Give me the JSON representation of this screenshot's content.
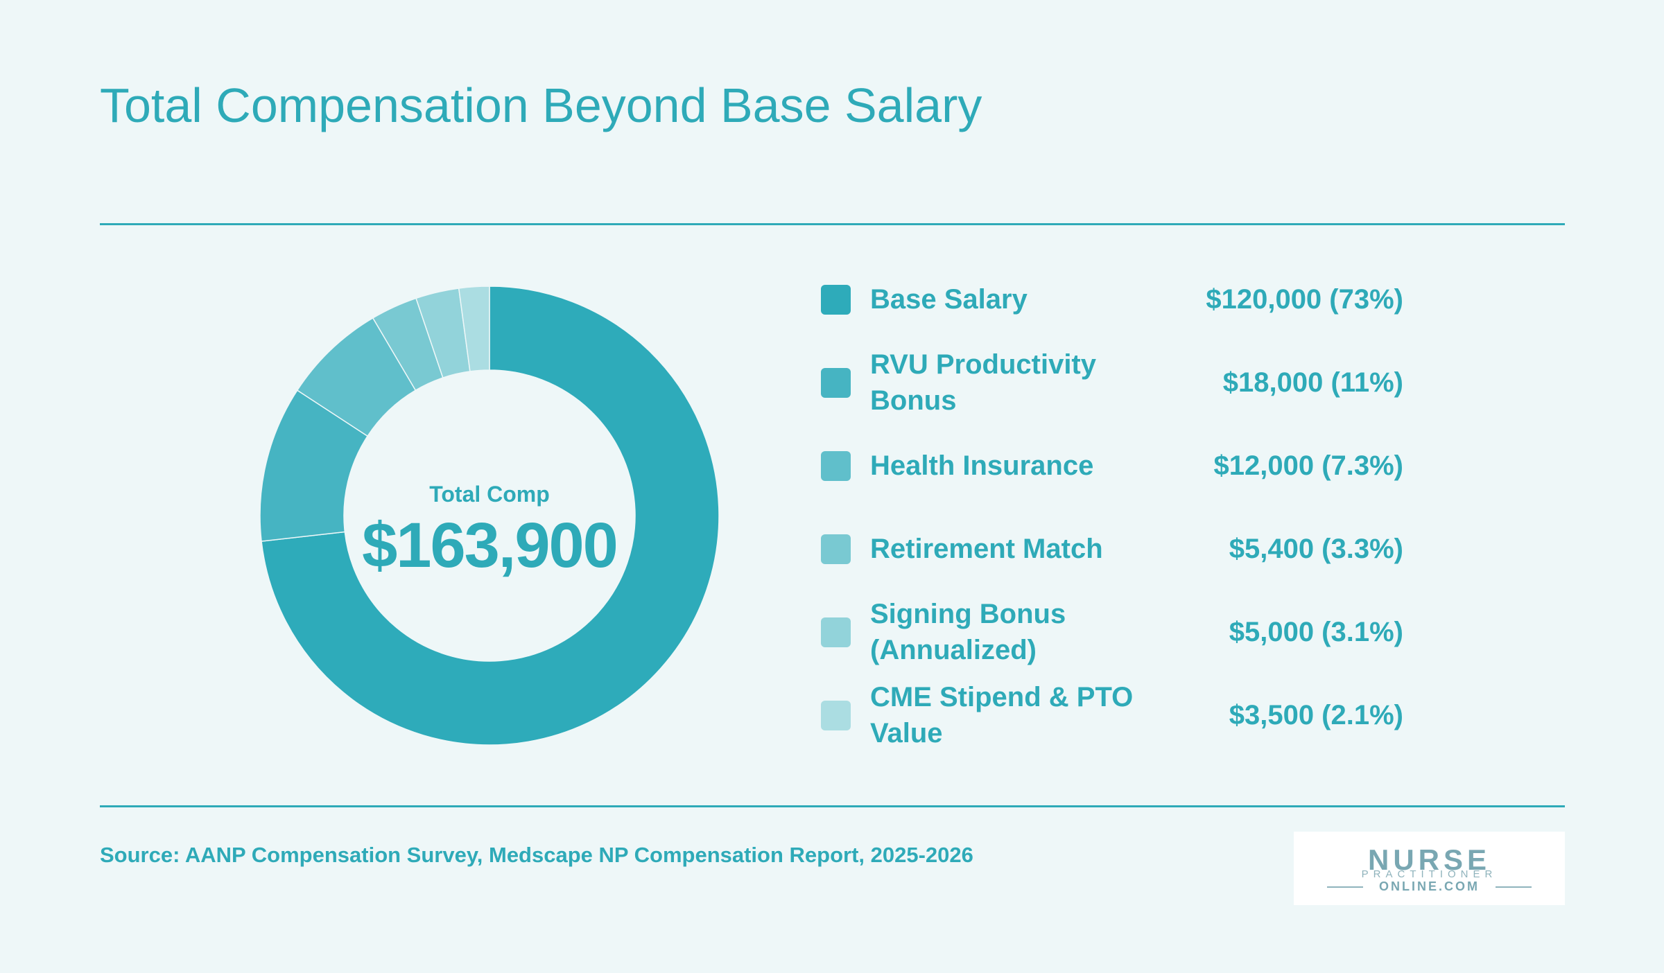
{
  "title": "Total Compensation Beyond Base Salary",
  "chart_data": {
    "type": "pie",
    "variant": "donut",
    "center_label": "Total Comp",
    "center_value": "$163,900",
    "total": 163900,
    "slices": [
      {
        "label": "Base Salary",
        "value": 120000,
        "display": "$120,000 (73%)",
        "color": "#2eabba"
      },
      {
        "label": "RVU Productivity Bonus",
        "value": 18000,
        "display": "$18,000 (11%)",
        "color": "#46b4c2"
      },
      {
        "label": "Health Insurance",
        "value": 12000,
        "display": "$12,000 (7.3%)",
        "color": "#60bfcb"
      },
      {
        "label": "Retirement Match",
        "value": 5400,
        "display": "$5,400 (3.3%)",
        "color": "#79c9d2"
      },
      {
        "label": "Signing Bonus (Annualized)",
        "value": 5000,
        "display": "$5,000 (3.1%)",
        "color": "#92d3da"
      },
      {
        "label": "CME Stipend & PTO Value",
        "value": 3500,
        "display": "$3,500 (2.1%)",
        "color": "#abdde2"
      }
    ],
    "legend_position": "right"
  },
  "source": "Source: AANP Compensation Survey, Medscape NP Compensation Report, 2025-2026",
  "logo": {
    "line1": "NURSE",
    "line2": "PRACTITIONER",
    "line3": "ONLINE.COM"
  },
  "colors": {
    "accent": "#2eaab8",
    "background": "#eef7f8"
  }
}
